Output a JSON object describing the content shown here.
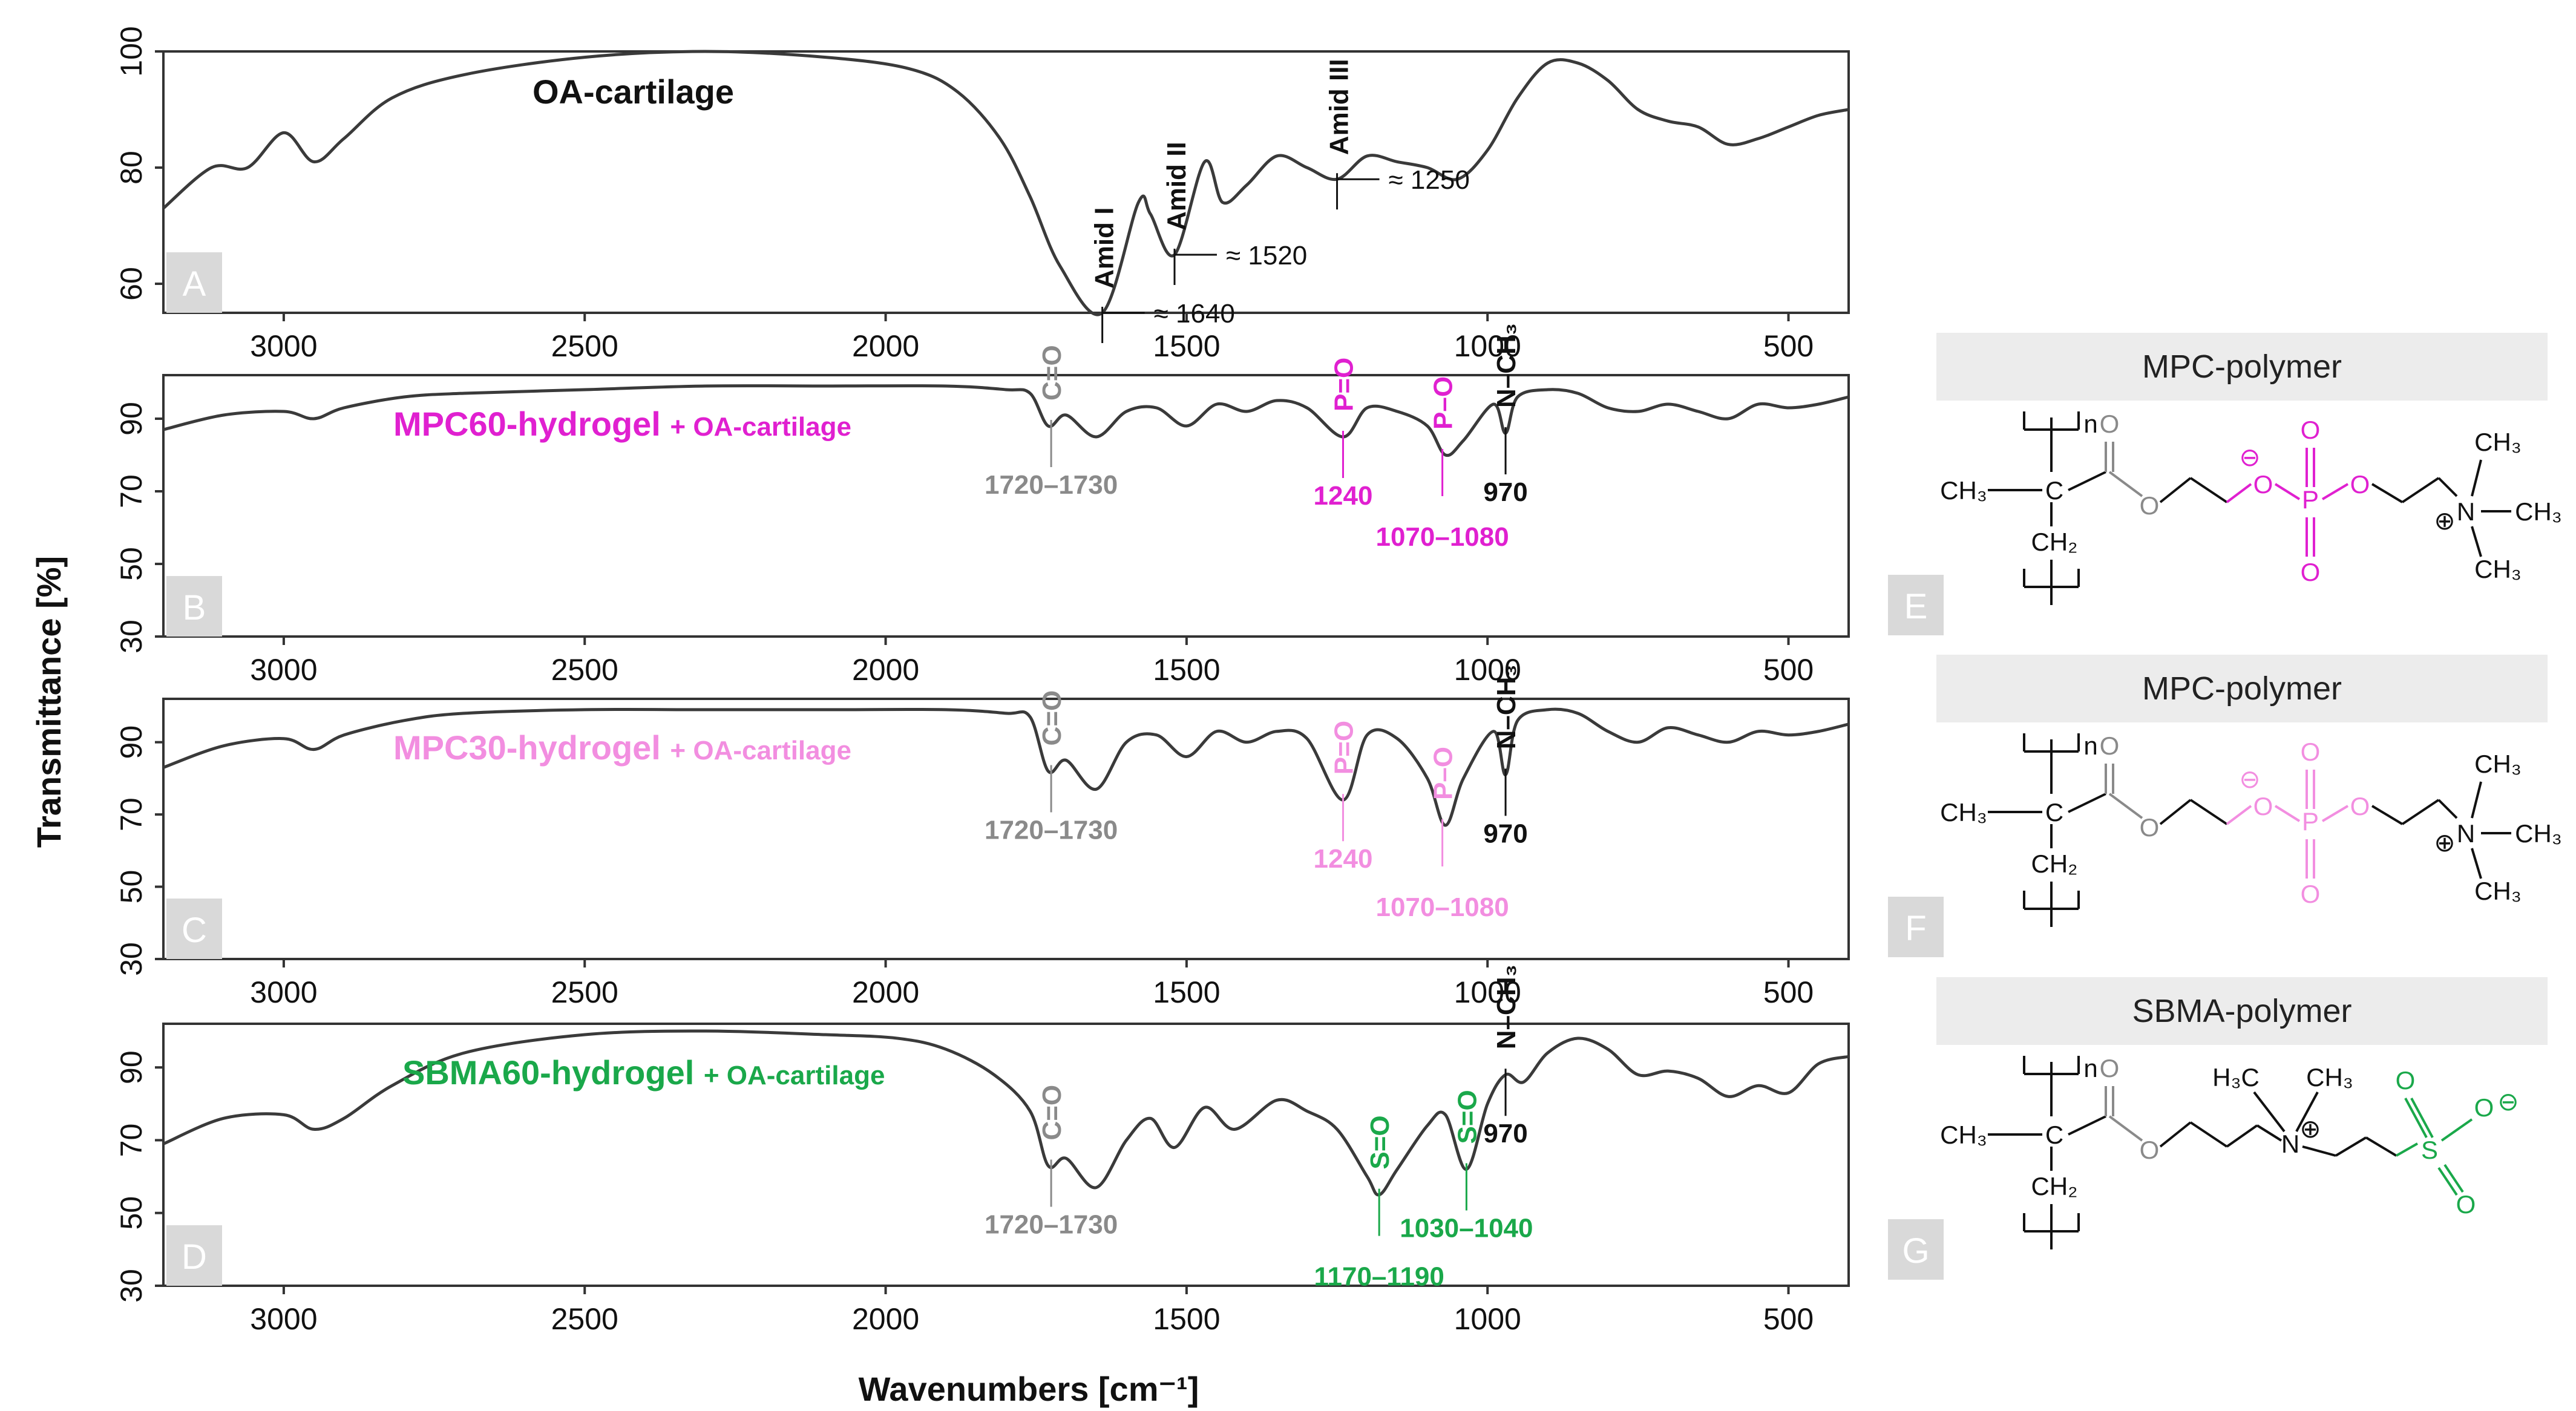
{
  "figure": {
    "y_axis_label": "Transmittance [%]",
    "x_axis_label": "Wavenumbers [cm⁻¹]"
  },
  "colors": {
    "curve": "#3a3a3a",
    "gray_annotation": "#8a8a8a",
    "black_annotation": "#111111",
    "magenta": "#e020d0",
    "pink": "#f28ee0",
    "green": "#1aa84a",
    "badge": "#d9d9d9",
    "header": "#ececec"
  },
  "chart_data": [
    {
      "type": "line",
      "panel": "A",
      "title": "OA-cartilage",
      "xlim": [
        3200,
        400
      ],
      "ylim": [
        55,
        100
      ],
      "xticks": [
        3000,
        2500,
        2000,
        1500,
        1000,
        500
      ],
      "yticks": [
        60,
        80,
        100
      ],
      "series": [
        {
          "name": "OA-cartilage",
          "points": [
            [
              3200,
              73
            ],
            [
              3120,
              80
            ],
            [
              3060,
              80
            ],
            [
              3000,
              86
            ],
            [
              2950,
              81
            ],
            [
              2900,
              85
            ],
            [
              2820,
              92
            ],
            [
              2700,
              96
            ],
            [
              2500,
              99
            ],
            [
              2300,
              100
            ],
            [
              2100,
              99
            ],
            [
              1960,
              97
            ],
            [
              1880,
              93
            ],
            [
              1810,
              85
            ],
            [
              1760,
              75
            ],
            [
              1710,
              63
            ],
            [
              1640,
              55
            ],
            [
              1580,
              74
            ],
            [
              1560,
              72
            ],
            [
              1520,
              65
            ],
            [
              1470,
              81
            ],
            [
              1440,
              74
            ],
            [
              1400,
              77
            ],
            [
              1350,
              82
            ],
            [
              1300,
              80
            ],
            [
              1250,
              78
            ],
            [
              1200,
              82
            ],
            [
              1150,
              81
            ],
            [
              1100,
              80
            ],
            [
              1050,
              78
            ],
            [
              1000,
              83
            ],
            [
              950,
              92
            ],
            [
              900,
              98
            ],
            [
              850,
              98
            ],
            [
              800,
              95
            ],
            [
              750,
              90
            ],
            [
              700,
              88
            ],
            [
              650,
              87
            ],
            [
              600,
              84
            ],
            [
              550,
              85
            ],
            [
              500,
              87
            ],
            [
              450,
              89
            ],
            [
              400,
              90
            ]
          ]
        }
      ],
      "annotations": [
        {
          "rotated": "Amid I",
          "label": "≈ 1640",
          "x": 1640,
          "y": 55,
          "color": "black",
          "label_side": "right"
        },
        {
          "rotated": "Amid II",
          "label": "≈ 1520",
          "x": 1520,
          "y": 65,
          "color": "black",
          "label_side": "right"
        },
        {
          "rotated": "Amid III",
          "label": "≈ 1250",
          "x": 1250,
          "y": 78,
          "color": "black",
          "label_side": "right"
        }
      ]
    },
    {
      "type": "line",
      "panel": "B",
      "title": "MPC60-hydrogel",
      "title_suffix": "+ OA-cartilage",
      "title_color": "magenta",
      "xlim": [
        3200,
        400
      ],
      "ylim": [
        30,
        102
      ],
      "xticks": [
        3000,
        2500,
        2000,
        1500,
        1000,
        500
      ],
      "yticks": [
        30,
        50,
        70,
        90
      ],
      "series": [
        {
          "name": "MPC60-hydrogel + OA-cartilage",
          "points": [
            [
              3200,
              87
            ],
            [
              3100,
              91
            ],
            [
              3000,
              92
            ],
            [
              2950,
              90
            ],
            [
              2900,
              93
            ],
            [
              2800,
              96
            ],
            [
              2700,
              97
            ],
            [
              2500,
              98
            ],
            [
              2300,
              99
            ],
            [
              2100,
              99
            ],
            [
              1900,
              99
            ],
            [
              1800,
              98
            ],
            [
              1760,
              97
            ],
            [
              1730,
              88
            ],
            [
              1700,
              91
            ],
            [
              1650,
              85
            ],
            [
              1600,
              92
            ],
            [
              1550,
              93
            ],
            [
              1500,
              88
            ],
            [
              1450,
              94
            ],
            [
              1400,
              92
            ],
            [
              1350,
              95
            ],
            [
              1300,
              93
            ],
            [
              1240,
              85
            ],
            [
              1200,
              93
            ],
            [
              1150,
              92
            ],
            [
              1100,
              88
            ],
            [
              1070,
              80
            ],
            [
              1040,
              84
            ],
            [
              990,
              94
            ],
            [
              970,
              86
            ],
            [
              950,
              96
            ],
            [
              900,
              98
            ],
            [
              850,
              97
            ],
            [
              800,
              93
            ],
            [
              750,
              92
            ],
            [
              700,
              94
            ],
            [
              650,
              92
            ],
            [
              600,
              90
            ],
            [
              550,
              94
            ],
            [
              500,
              93
            ],
            [
              450,
              94
            ],
            [
              400,
              96
            ]
          ]
        }
      ],
      "annotations": [
        {
          "rotated": "C=O",
          "label": "1720–1730",
          "x": 1725,
          "y": 88,
          "color": "gray",
          "label_side": "below"
        },
        {
          "rotated": "P=O",
          "label": "1240",
          "x": 1240,
          "y": 85,
          "color": "magenta",
          "label_side": "below"
        },
        {
          "rotated": "P–O",
          "label": "1070–1080",
          "x": 1075,
          "y": 80,
          "color": "magenta",
          "label_side": "below2"
        },
        {
          "rotated": "N–CH₃",
          "label": "970",
          "x": 970,
          "y": 86,
          "color": "black",
          "label_side": "below"
        }
      ]
    },
    {
      "type": "line",
      "panel": "C",
      "title": "MPC30-hydrogel",
      "title_suffix": "+ OA-cartilage",
      "title_color": "pink",
      "xlim": [
        3200,
        400
      ],
      "ylim": [
        30,
        102
      ],
      "xticks": [
        3000,
        2500,
        2000,
        1500,
        1000,
        500
      ],
      "yticks": [
        30,
        50,
        70,
        90
      ],
      "series": [
        {
          "name": "MPC30-hydrogel + OA-cartilage",
          "points": [
            [
              3200,
              83
            ],
            [
              3100,
              89
            ],
            [
              3000,
              91
            ],
            [
              2950,
              88
            ],
            [
              2900,
              92
            ],
            [
              2800,
              96
            ],
            [
              2700,
              98
            ],
            [
              2500,
              99
            ],
            [
              2300,
              99
            ],
            [
              2100,
              99
            ],
            [
              1900,
              99
            ],
            [
              1800,
              98
            ],
            [
              1760,
              97
            ],
            [
              1730,
              82
            ],
            [
              1700,
              85
            ],
            [
              1650,
              77
            ],
            [
              1600,
              90
            ],
            [
              1550,
              92
            ],
            [
              1500,
              86
            ],
            [
              1450,
              93
            ],
            [
              1400,
              90
            ],
            [
              1350,
              93
            ],
            [
              1300,
              91
            ],
            [
              1240,
              74
            ],
            [
              1200,
              92
            ],
            [
              1150,
              91
            ],
            [
              1100,
              80
            ],
            [
              1070,
              67
            ],
            [
              1040,
              80
            ],
            [
              990,
              93
            ],
            [
              970,
              81
            ],
            [
              950,
              96
            ],
            [
              900,
              99
            ],
            [
              850,
              98
            ],
            [
              800,
              93
            ],
            [
              750,
              90
            ],
            [
              700,
              94
            ],
            [
              650,
              92
            ],
            [
              600,
              90
            ],
            [
              550,
              93
            ],
            [
              500,
              92
            ],
            [
              450,
              93
            ],
            [
              400,
              95
            ]
          ]
        }
      ],
      "annotations": [
        {
          "rotated": "C=O",
          "label": "1720–1730",
          "x": 1725,
          "y": 82,
          "color": "gray",
          "label_side": "below"
        },
        {
          "rotated": "P=O",
          "label": "1240",
          "x": 1240,
          "y": 74,
          "color": "pink",
          "label_side": "below"
        },
        {
          "rotated": "P–O",
          "label": "1070–1080",
          "x": 1075,
          "y": 67,
          "color": "pink",
          "label_side": "below2"
        },
        {
          "rotated": "N–CH₃",
          "label": "970",
          "x": 970,
          "y": 81,
          "color": "black",
          "label_side": "below"
        }
      ]
    },
    {
      "type": "line",
      "panel": "D",
      "title": "SBMA60-hydrogel",
      "title_suffix": "+ OA-cartilage",
      "title_color": "green",
      "xlim": [
        3200,
        400
      ],
      "ylim": [
        30,
        102
      ],
      "xticks": [
        3000,
        2500,
        2000,
        1500,
        1000,
        500
      ],
      "yticks": [
        30,
        50,
        70,
        90
      ],
      "series": [
        {
          "name": "SBMA60-hydrogel + OA-cartilage",
          "points": [
            [
              3200,
              69
            ],
            [
              3100,
              76
            ],
            [
              3000,
              77
            ],
            [
              2950,
              73
            ],
            [
              2900,
              76
            ],
            [
              2820,
              85
            ],
            [
              2700,
              94
            ],
            [
              2500,
              99
            ],
            [
              2300,
              100
            ],
            [
              2100,
              99
            ],
            [
              1980,
              98
            ],
            [
              1900,
              95
            ],
            [
              1820,
              88
            ],
            [
              1760,
              78
            ],
            [
              1730,
              63
            ],
            [
              1700,
              65
            ],
            [
              1650,
              57
            ],
            [
              1600,
              70
            ],
            [
              1560,
              76
            ],
            [
              1520,
              68
            ],
            [
              1470,
              79
            ],
            [
              1420,
              73
            ],
            [
              1350,
              81
            ],
            [
              1300,
              78
            ],
            [
              1250,
              73
            ],
            [
              1200,
              60
            ],
            [
              1180,
              55
            ],
            [
              1150,
              62
            ],
            [
              1100,
              74
            ],
            [
              1070,
              77
            ],
            [
              1035,
              62
            ],
            [
              1000,
              80
            ],
            [
              970,
              88
            ],
            [
              940,
              86
            ],
            [
              900,
              94
            ],
            [
              850,
              98
            ],
            [
              800,
              95
            ],
            [
              750,
              88
            ],
            [
              700,
              89
            ],
            [
              650,
              87
            ],
            [
              600,
              82
            ],
            [
              550,
              85
            ],
            [
              500,
              83
            ],
            [
              450,
              91
            ],
            [
              400,
              93
            ]
          ]
        }
      ],
      "annotations": [
        {
          "rotated": "C=O",
          "label": "1720–1730",
          "x": 1725,
          "y": 63,
          "color": "gray",
          "label_side": "below"
        },
        {
          "rotated": "S=O",
          "label": "1170–1190",
          "x": 1180,
          "y": 55,
          "color": "green",
          "label_side": "below2"
        },
        {
          "rotated": "S=O",
          "label": "1030–1040",
          "x": 1035,
          "y": 62,
          "color": "green",
          "label_side": "below"
        },
        {
          "rotated": "N–CH₃",
          "label": "970",
          "x": 970,
          "y": 88,
          "color": "black",
          "label_side": "below"
        }
      ]
    }
  ],
  "panel_letters": [
    "A",
    "B",
    "C",
    "D"
  ],
  "structures": [
    {
      "letter": "E",
      "title": "MPC-polymer",
      "group_color": "magenta",
      "labels": {
        "n": "n",
        "ch3": "CH₃",
        "c": "C",
        "ch2": "CH₂",
        "o": "O",
        "neg": "⊖",
        "p": "P",
        "pos": "⊕",
        "n_atom": "N",
        "ch3_top": "CH₃",
        "ch3_right": "CH₃",
        "ch3_bottom": "CH₃"
      }
    },
    {
      "letter": "F",
      "title": "MPC-polymer",
      "group_color": "pink",
      "labels": {
        "n": "n",
        "ch3": "CH₃",
        "c": "C",
        "ch2": "CH₂",
        "o": "O",
        "neg": "⊖",
        "p": "P",
        "pos": "⊕",
        "n_atom": "N",
        "ch3_top": "CH₃",
        "ch3_right": "CH₃",
        "ch3_bottom": "CH₃"
      }
    },
    {
      "letter": "G",
      "title": "SBMA-polymer",
      "group_color": "green",
      "labels": {
        "n": "n",
        "ch3": "CH₃",
        "c": "C",
        "ch2": "CH₂",
        "o": "O",
        "neg": "⊖",
        "pos": "⊕",
        "n_atom": "N",
        "h3c_top": "H₃C",
        "ch3_top": "CH₃",
        "s": "S"
      }
    }
  ]
}
